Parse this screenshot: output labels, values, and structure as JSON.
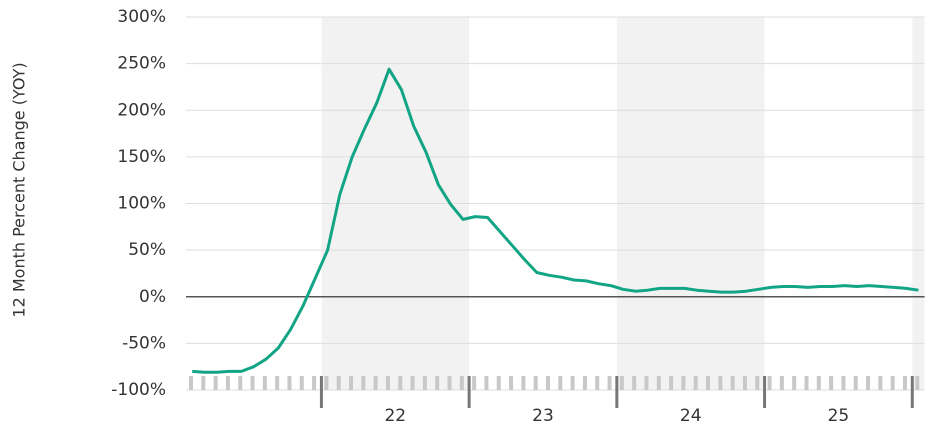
{
  "chart_data": {
    "type": "line",
    "y_axis_label": "12 Month Percent Change (YOY)",
    "categories": [
      null,
      null,
      null,
      null,
      null,
      null,
      null,
      null,
      null,
      null,
      null,
      "22",
      null,
      null,
      null,
      null,
      null,
      null,
      null,
      null,
      null,
      null,
      null,
      "23",
      null,
      null,
      null,
      null,
      null,
      null,
      null,
      null,
      null,
      null,
      null,
      "24",
      null,
      null,
      null,
      null,
      null,
      null,
      null,
      null,
      null,
      null,
      null,
      "25",
      null,
      null,
      null,
      null,
      null,
      null,
      null,
      null,
      null,
      null,
      null,
      null
    ],
    "series": [
      {
        "name": "12 Month Percent Change",
        "color": "#12a585",
        "values": [
          -80,
          -81,
          -81,
          -80,
          -80,
          -75,
          -67,
          -55,
          -35,
          -10,
          20,
          50,
          110,
          150,
          180,
          208,
          244,
          222,
          183,
          155,
          120,
          99,
          83,
          86,
          85,
          70,
          55,
          40,
          26,
          23,
          21,
          18,
          17,
          14,
          12,
          8,
          6,
          7,
          9,
          9,
          9,
          7,
          6,
          5,
          5,
          6,
          8,
          10,
          11,
          11,
          10,
          11,
          11,
          12,
          11,
          12,
          11,
          10,
          9,
          7
        ]
      }
    ],
    "ylim": [
      -100,
      300
    ],
    "yticks": [
      {
        "value": -100,
        "label": "-100%"
      },
      {
        "value": -50,
        "label": "-50%"
      },
      {
        "value": 0,
        "label": "0%"
      },
      {
        "value": 50,
        "label": "50%"
      },
      {
        "value": 100,
        "label": "100%"
      },
      {
        "value": 150,
        "label": "150%"
      },
      {
        "value": 200,
        "label": "200%"
      },
      {
        "value": 250,
        "label": "250%"
      },
      {
        "value": 300,
        "label": "300%"
      }
    ],
    "grid": true
  }
}
